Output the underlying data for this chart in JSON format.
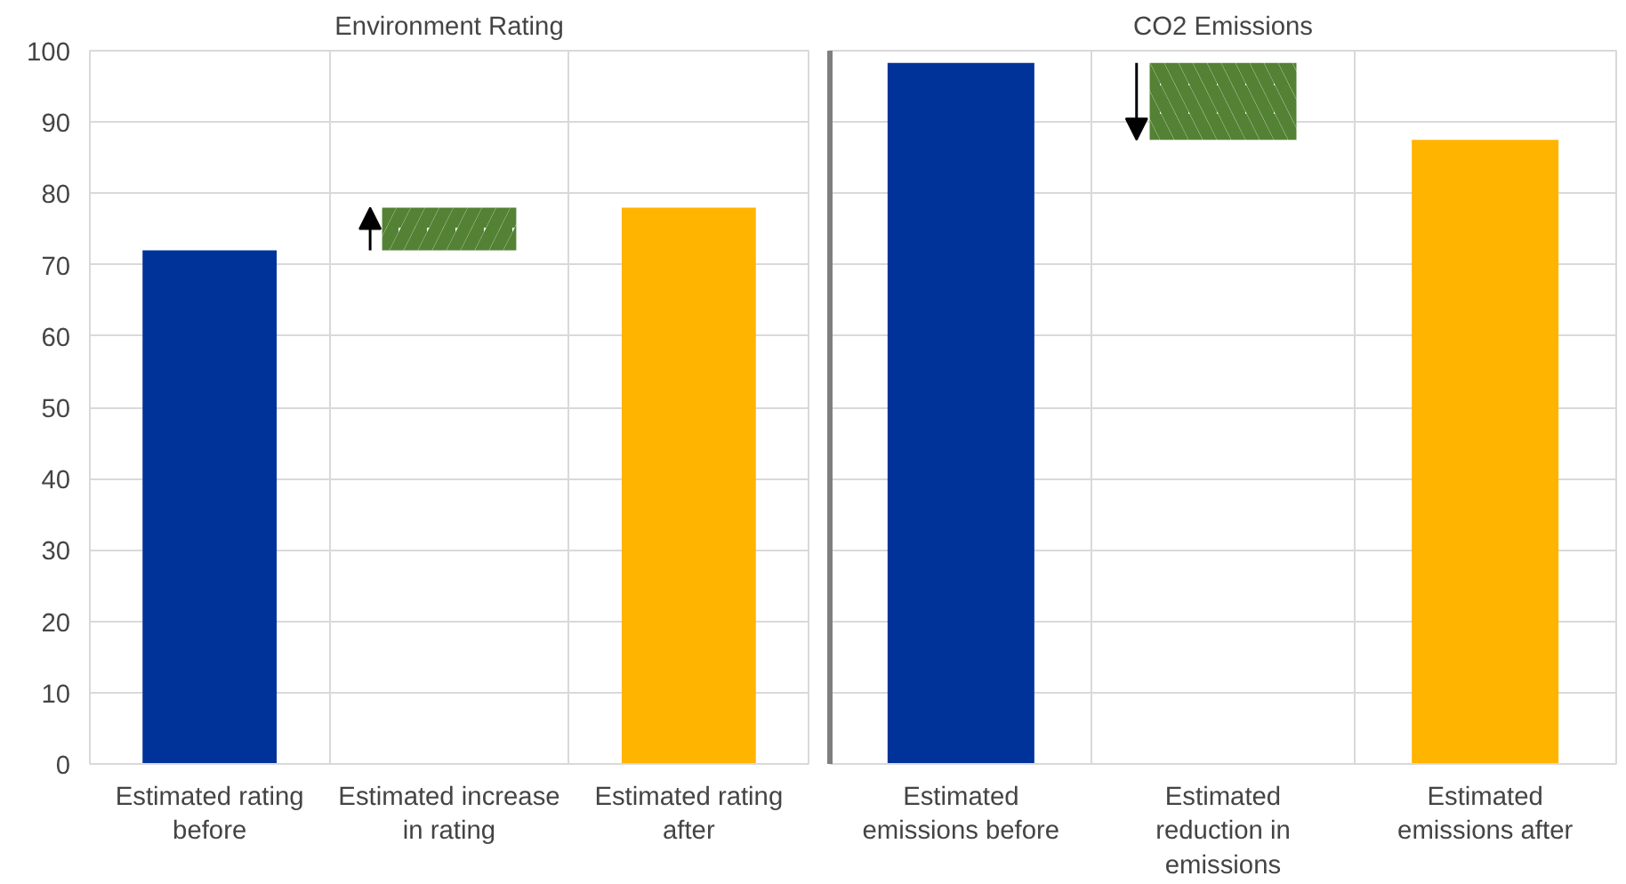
{
  "chart_data": [
    {
      "type": "bar",
      "title": "Environment Rating",
      "categories": [
        "Estimated rating before",
        "Estimated increase in rating",
        "Estimated rating after"
      ],
      "values": [
        72,
        6,
        78
      ],
      "base": [
        0,
        72,
        0
      ],
      "colors": [
        "#003399",
        "#548235",
        "#ffb400"
      ],
      "ylim": [
        0,
        100
      ],
      "yticks": [
        0,
        10,
        20,
        30,
        40,
        50,
        60,
        70,
        80,
        90,
        100
      ],
      "grid": true
    },
    {
      "type": "bar",
      "title": "CO2 Emissions",
      "categories": [
        "Estimated emissions before",
        "Estimated reduction in emissions",
        "Estimated emissions after"
      ],
      "values": [
        98.3,
        -10.8,
        87.5
      ],
      "base": [
        0,
        98.3,
        0
      ],
      "colors": [
        "#003399",
        "#548235",
        "#ffb400"
      ],
      "ylim": [
        0,
        100
      ],
      "yticks": [
        0,
        10,
        20,
        30,
        40,
        50,
        60,
        70,
        80,
        90,
        100
      ],
      "grid": true,
      "tick_labels": "x"
    }
  ]
}
